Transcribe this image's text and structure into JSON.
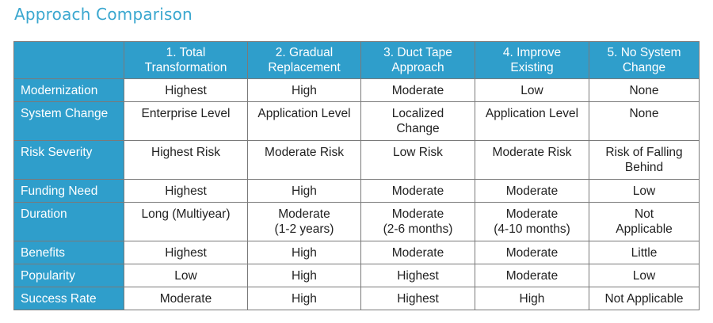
{
  "title": "Approach Comparison",
  "columns": [
    [
      "1. Total",
      "Transformation"
    ],
    [
      "2. Gradual",
      "Replacement"
    ],
    [
      "3. Duct Tape",
      "Approach"
    ],
    [
      "4. Improve",
      "Existing"
    ],
    [
      "5. No System",
      "Change"
    ]
  ],
  "rows": [
    {
      "label": "Modernization",
      "cells": [
        [
          "Highest"
        ],
        [
          "High"
        ],
        [
          "Moderate"
        ],
        [
          "Low"
        ],
        [
          "None"
        ]
      ]
    },
    {
      "label": "System Change",
      "cells": [
        [
          "Enterprise Level"
        ],
        [
          "Application Level"
        ],
        [
          "Localized",
          "Change"
        ],
        [
          "Application Level"
        ],
        [
          "None"
        ]
      ]
    },
    {
      "label": "Risk Severity",
      "cells": [
        [
          "Highest Risk"
        ],
        [
          "Moderate Risk"
        ],
        [
          "Low Risk"
        ],
        [
          "Moderate Risk"
        ],
        [
          "Risk of Falling",
          "Behind"
        ]
      ]
    },
    {
      "label": "Funding Need",
      "cells": [
        [
          "Highest"
        ],
        [
          "High"
        ],
        [
          "Moderate"
        ],
        [
          "Moderate"
        ],
        [
          "Low"
        ]
      ]
    },
    {
      "label": "Duration",
      "cells": [
        [
          "Long (Multiyear)"
        ],
        [
          "Moderate",
          "(1-2 years)"
        ],
        [
          "Moderate",
          "(2-6 months)"
        ],
        [
          "Moderate",
          "(4-10 months)"
        ],
        [
          "Not",
          "Applicable"
        ]
      ]
    },
    {
      "label": "Benefits",
      "cells": [
        [
          "Highest"
        ],
        [
          "High"
        ],
        [
          "Moderate"
        ],
        [
          "Moderate"
        ],
        [
          "Little"
        ]
      ]
    },
    {
      "label": "Popularity",
      "cells": [
        [
          "Low"
        ],
        [
          "High"
        ],
        [
          "Highest"
        ],
        [
          "Moderate"
        ],
        [
          "Low"
        ]
      ]
    },
    {
      "label": "Success Rate",
      "cells": [
        [
          "Moderate"
        ],
        [
          "High"
        ],
        [
          "Highest"
        ],
        [
          "High"
        ],
        [
          "Not Applicable"
        ]
      ]
    }
  ],
  "colors": {
    "header_bg": "#2f9ecb",
    "title": "#3aa7cf",
    "border": "#7a7a7a"
  }
}
